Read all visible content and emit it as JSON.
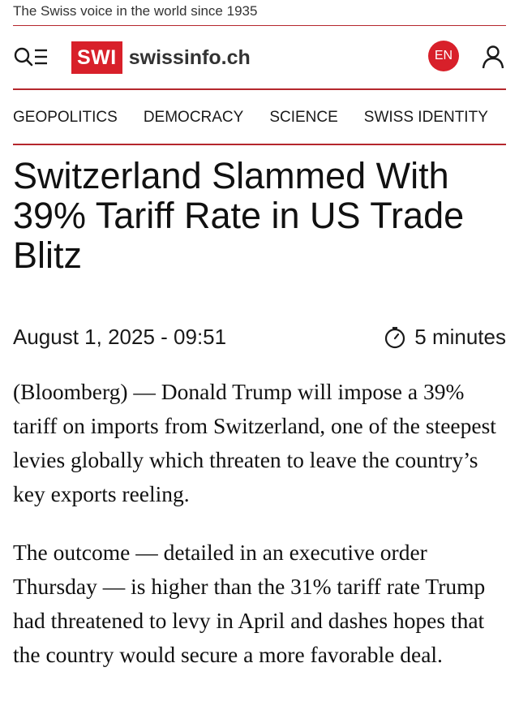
{
  "tagline": "The Swiss voice in the world since 1935",
  "header": {
    "logo_abbr": "SWI",
    "logo_name": "swissinfo.ch",
    "language": "EN",
    "menu_icon": "search-menu-icon",
    "user_icon": "user-icon",
    "accent": "#d8202a"
  },
  "nav": {
    "items": [
      "GEOPOLITICS",
      "DEMOCRACY",
      "SCIENCE",
      "SWISS IDENTITY"
    ]
  },
  "article": {
    "headline": "Switzerland Slammed With 39% Tariff Rate in US Trade Blitz",
    "date": "August 1, 2025 - 09:51",
    "read_time": "5 minutes",
    "paragraphs": [
      "(Bloomberg) — Donald Trump will impose a 39% tariff on imports from Switzerland, one of the steepest levies globally which threaten to leave the country’s key exports reeling.",
      "The outcome — detailed in an executive order Thursday — is higher than the 31% tariff rate Trump had threatened to levy in April and dashes hopes that the country would secure a more favorable deal."
    ]
  }
}
